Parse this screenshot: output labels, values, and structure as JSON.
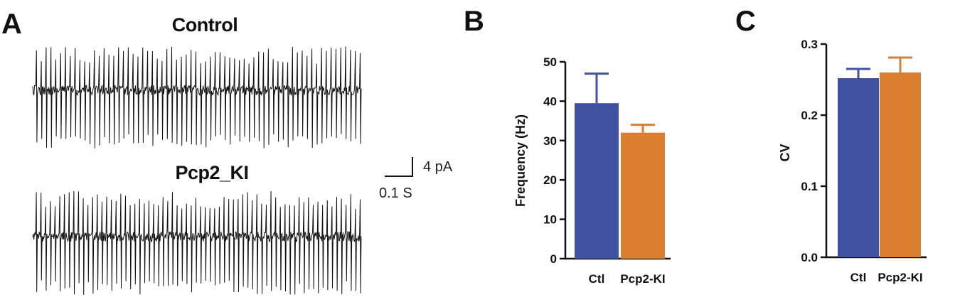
{
  "figure": {
    "panels": [
      "A",
      "B",
      "C"
    ]
  },
  "panel_a": {
    "traces": [
      {
        "label": "Control",
        "spike_count": 68
      },
      {
        "label": "Pcp2_KI",
        "spike_count": 70
      }
    ],
    "scale_bar": {
      "y_label": "4 pA",
      "x_label": "0.1 S"
    },
    "trace_color": "#111111"
  },
  "chart_data": [
    {
      "type": "bar",
      "categories": [
        "Ctl",
        "Pcp2-KI"
      ],
      "values": [
        39.5,
        32
      ],
      "error": [
        7.5,
        2
      ],
      "colors": [
        "#4152a3",
        "#da7e30"
      ],
      "title": "",
      "xlabel": "",
      "ylabel": "Frequency (Hz)",
      "ylim": [
        0,
        50
      ],
      "yticks": [
        "0",
        "10",
        "20",
        "30",
        "40",
        "50"
      ],
      "grid": false,
      "legend": "none"
    },
    {
      "type": "bar",
      "categories": [
        "Ctl",
        "Pcp2-KI"
      ],
      "values": [
        0.252,
        0.26
      ],
      "error": [
        0.013,
        0.021
      ],
      "colors": [
        "#4152a3",
        "#da7e30"
      ],
      "title": "",
      "xlabel": "",
      "ylabel": "CV",
      "ylim": [
        0,
        0.3
      ],
      "yticks": [
        "0.0",
        "0.1",
        "0.2",
        "0.3"
      ],
      "grid": false,
      "legend": "none"
    }
  ]
}
